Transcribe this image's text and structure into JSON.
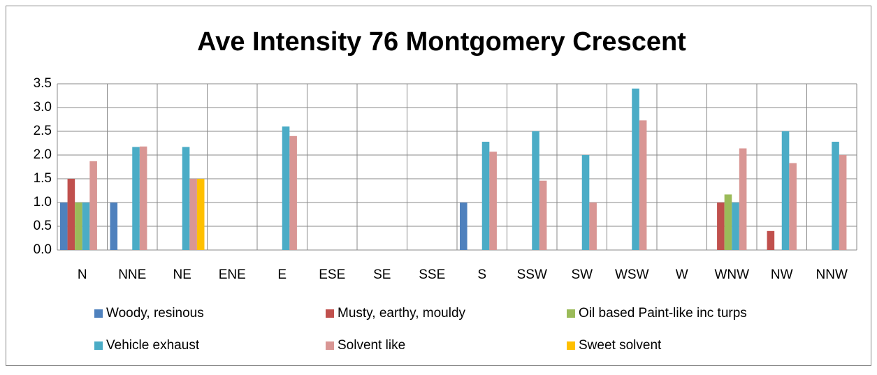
{
  "chart_data": {
    "type": "bar",
    "title": "Ave Intensity 76 Montgomery Crescent",
    "categories": [
      "N",
      "NNE",
      "NE",
      "ENE",
      "E",
      "ESE",
      "SE",
      "SSE",
      "S",
      "SSW",
      "SW",
      "WSW",
      "W",
      "WNW",
      "NW",
      "NNW"
    ],
    "series": [
      {
        "name": "Woody, resinous",
        "color": "#4f81bd",
        "values": [
          1,
          1,
          null,
          null,
          null,
          null,
          null,
          null,
          1,
          null,
          null,
          null,
          null,
          null,
          null,
          null
        ]
      },
      {
        "name": "Musty, earthy, mouldy",
        "color": "#c0504d",
        "values": [
          1.5,
          null,
          null,
          null,
          null,
          null,
          null,
          null,
          null,
          null,
          null,
          null,
          null,
          1,
          0.4,
          null
        ]
      },
      {
        "name": "Oil based Paint-like inc turps",
        "color": "#9bbb59",
        "values": [
          1,
          null,
          null,
          null,
          null,
          null,
          null,
          null,
          null,
          null,
          null,
          null,
          null,
          1.17,
          null,
          null
        ]
      },
      {
        "name": "Vehicle exhaust",
        "color": "#4bacc6",
        "values": [
          1,
          2.17,
          2.17,
          null,
          2.6,
          null,
          null,
          null,
          2.28,
          2.5,
          2,
          3.4,
          null,
          1,
          2.5,
          2.28
        ]
      },
      {
        "name": "Solvent like",
        "color": "#d99694",
        "values": [
          1.87,
          2.18,
          1.5,
          null,
          2.4,
          null,
          null,
          null,
          2.07,
          1.46,
          1,
          2.73,
          null,
          2.14,
          1.83,
          2
        ]
      },
      {
        "name": "Sweet solvent",
        "color": "#ffc000",
        "values": [
          null,
          null,
          1.5,
          null,
          null,
          null,
          null,
          null,
          null,
          null,
          null,
          null,
          null,
          null,
          null,
          null
        ]
      }
    ],
    "ylim": [
      0,
      3.5
    ],
    "yticks": [
      {
        "value": 0,
        "label": "0.0"
      },
      0.5,
      {
        "value": 1,
        "label": "1.0"
      },
      1.5,
      {
        "value": 2,
        "label": "2.0"
      },
      2.5,
      {
        "value": 3,
        "label": "3.0"
      },
      3.5
    ],
    "grid": true
  }
}
